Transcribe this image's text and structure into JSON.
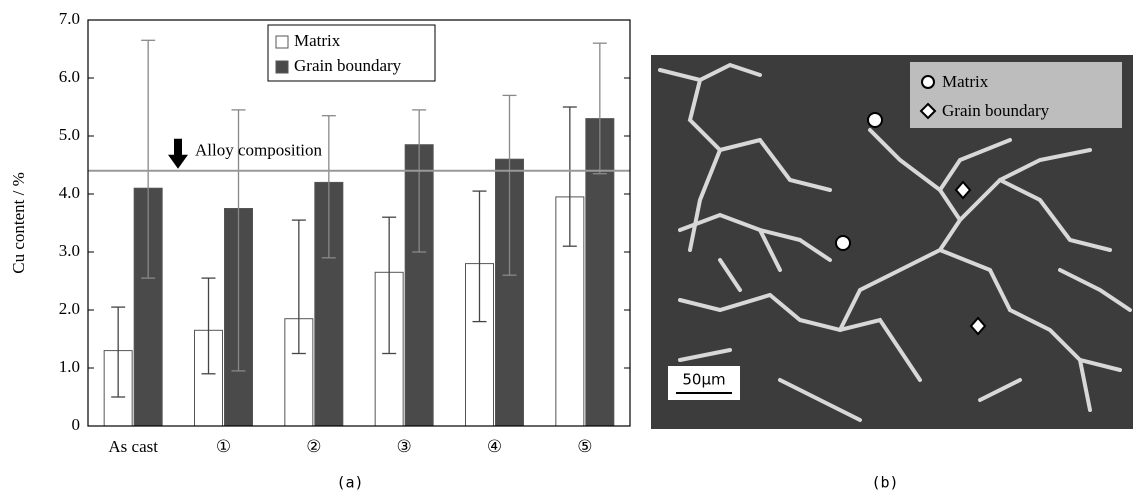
{
  "chart_data": {
    "type": "bar",
    "caption": "(a)",
    "ylabel": "Cu content / %",
    "categories": [
      "As cast",
      "①",
      "②",
      "③",
      "④",
      "⑤"
    ],
    "series": [
      {
        "name": "Matrix",
        "color": "#ffffff",
        "values": [
          1.3,
          1.65,
          1.85,
          2.65,
          2.8,
          3.95
        ],
        "errors_minus": [
          0.8,
          0.75,
          0.6,
          1.4,
          1.0,
          0.85
        ],
        "errors_plus": [
          0.75,
          0.9,
          1.7,
          0.95,
          1.25,
          1.55
        ]
      },
      {
        "name": "Grain boundary",
        "color": "#4a4a4a",
        "values": [
          4.1,
          3.75,
          4.2,
          4.85,
          4.6,
          5.3
        ],
        "errors_minus": [
          1.55,
          2.8,
          1.3,
          1.85,
          2.0,
          0.95
        ],
        "errors_plus": [
          2.55,
          1.7,
          1.15,
          0.6,
          1.1,
          1.3
        ]
      }
    ],
    "reference_line": {
      "value": 4.4,
      "label": "Alloy composition"
    },
    "ylim": [
      0,
      7
    ],
    "yticks": [
      0,
      {
        "value": 1,
        "label": "1.0"
      },
      {
        "value": 2,
        "label": "2.0"
      },
      {
        "value": 3,
        "label": "3.0"
      },
      {
        "value": 4,
        "label": "4.0"
      },
      {
        "value": 5,
        "label": "5.0"
      },
      {
        "value": 6,
        "label": "6.0"
      },
      {
        "value": 7,
        "label": "7.0"
      }
    ]
  },
  "micrograph": {
    "legend": [
      "Matrix",
      "Grain boundary"
    ],
    "scale_bar": "50μm",
    "caption": "(b)"
  }
}
